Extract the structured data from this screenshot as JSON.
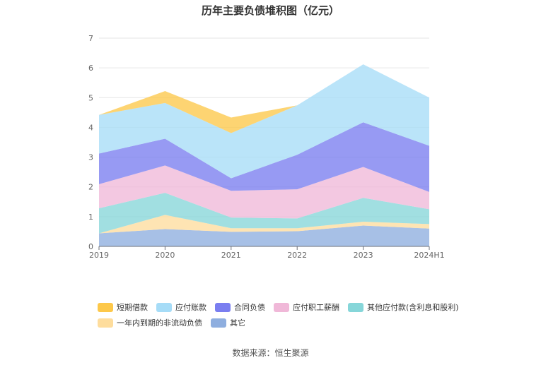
{
  "chart_data": {
    "type": "area",
    "stacked": true,
    "title": "历年主要负债堆积图（亿元）",
    "x": [
      "2019",
      "2020",
      "2021",
      "2022",
      "2023",
      "2024H1"
    ],
    "ylim": [
      0,
      7
    ],
    "yticks": [
      0,
      1,
      2,
      3,
      4,
      5,
      6,
      7
    ],
    "grid": true,
    "legend_position": "bottom",
    "series": [
      {
        "name": "其它",
        "color": "#8eaedf",
        "values": [
          0.44,
          0.58,
          0.49,
          0.51,
          0.7,
          0.6
        ]
      },
      {
        "name": "一年内到期的非流动负债",
        "color": "#fedd9d",
        "values": [
          0.0,
          0.48,
          0.12,
          0.1,
          0.13,
          0.15
        ]
      },
      {
        "name": "其他应付款(含利息和股利)",
        "color": "#86d6d9",
        "values": [
          0.84,
          0.74,
          0.36,
          0.33,
          0.8,
          0.5
        ]
      },
      {
        "name": "应付职工薪酬",
        "color": "#f0b8d8",
        "values": [
          0.81,
          0.92,
          0.9,
          0.98,
          1.04,
          0.58
        ]
      },
      {
        "name": "合同负债",
        "color": "#7a7ef0",
        "values": [
          1.03,
          0.9,
          0.42,
          1.16,
          1.5,
          1.55
        ]
      },
      {
        "name": "应付账款",
        "color": "#a6dcf7",
        "values": [
          1.3,
          1.2,
          1.52,
          1.66,
          1.95,
          1.62
        ]
      },
      {
        "name": "短期借款",
        "color": "#fdc84a",
        "values": [
          0.0,
          0.4,
          0.52,
          0.0,
          0.0,
          0.0
        ]
      }
    ],
    "legend_order": [
      "短期借款",
      "应付账款",
      "合同负债",
      "应付职工薪酬",
      "其他应付款(含利息和股利)",
      "一年内到期的非流动负债",
      "其它"
    ]
  },
  "source_text": "数据来源：恒生聚源"
}
